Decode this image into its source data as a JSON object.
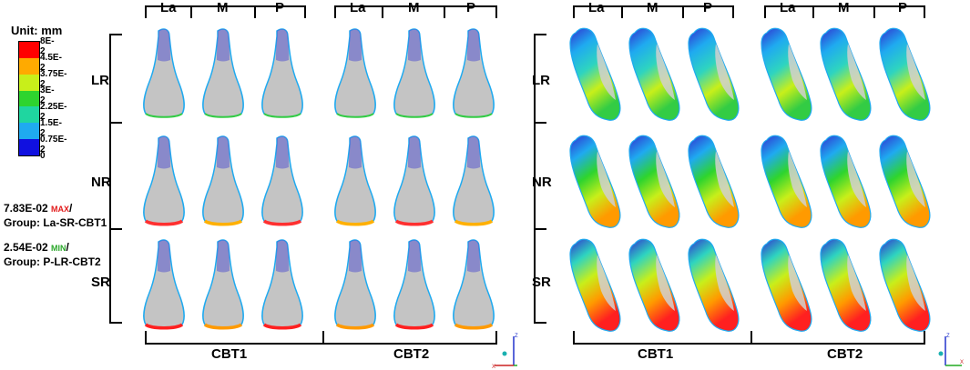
{
  "legend": {
    "title": "Unit: mm",
    "items": [
      {
        "label": "8E-2",
        "color": "#ff0000"
      },
      {
        "label": "4.5E-2",
        "color": "#ffaa00"
      },
      {
        "label": "3.75E-2",
        "color": "#c8ef1a"
      },
      {
        "label": "3E-2",
        "color": "#2ed42e"
      },
      {
        "label": "2.25E-2",
        "color": "#1fd6a0"
      },
      {
        "label": "1.5E-2",
        "color": "#1faaf0"
      },
      {
        "label": "0.75E-2",
        "color": "#1010e0"
      },
      {
        "label": "0",
        "color": ""
      }
    ]
  },
  "stats": {
    "max_value": "7.83E-02",
    "max_word": "MAX",
    "max_group": "Group: La-SR-CBT1",
    "min_value": "2.54E-02",
    "min_word": "MIN",
    "min_group": "Group: P-LR-CBT2"
  },
  "column_labels": [
    "La",
    "M",
    "P",
    "La",
    "M",
    "P"
  ],
  "row_labels": [
    "LR",
    "NR",
    "SR"
  ],
  "bottom_groups": [
    "CBT1",
    "CBT2"
  ],
  "axis": {
    "z": "Z",
    "x": "X"
  }
}
